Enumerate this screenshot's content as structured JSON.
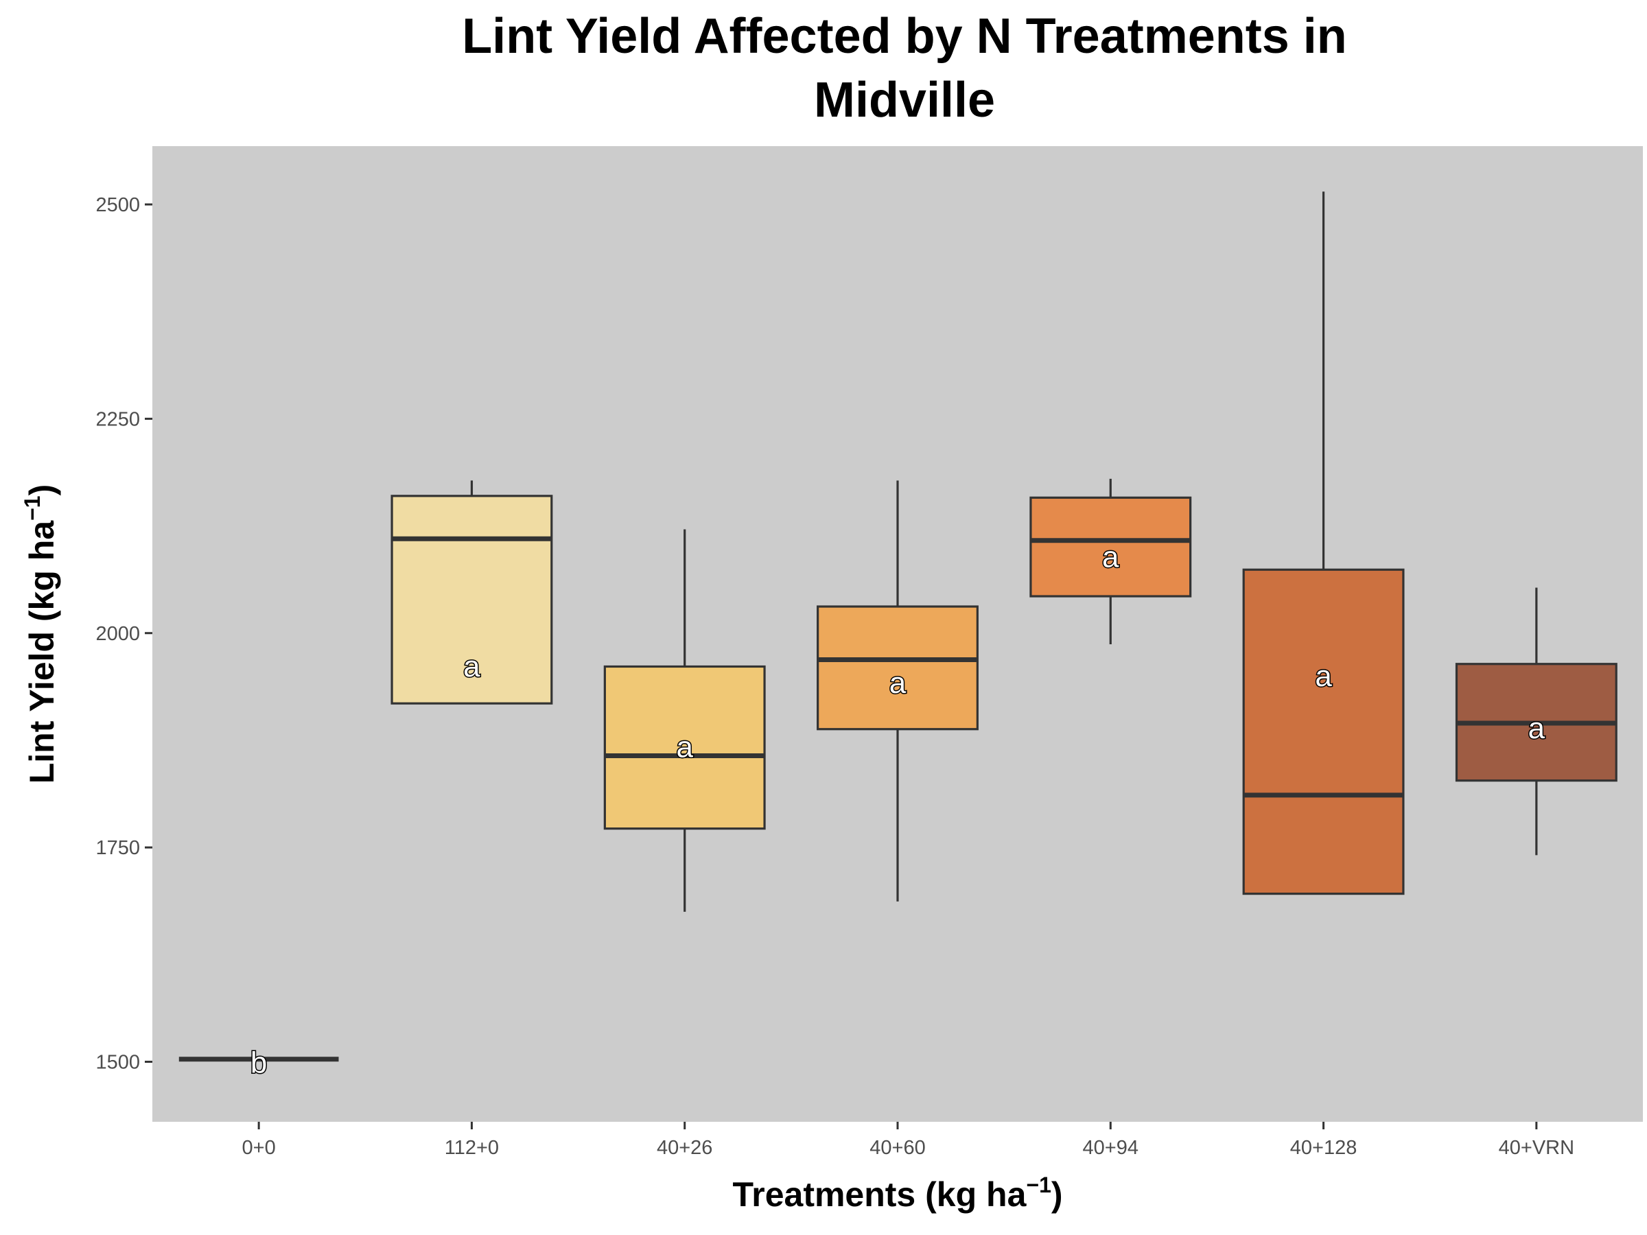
{
  "chart_data": {
    "type": "box",
    "title_lines": [
      "Lint Yield Affected by N Treatments in",
      "Midville"
    ],
    "xlabel": {
      "main": "Treatments (kg ha",
      "sup": "−1",
      "end": ")"
    },
    "ylabel": {
      "main": "Lint Yield (kg ha",
      "sup": "−1",
      "end": ")"
    },
    "ylim": [
      1430,
      2568
    ],
    "yticks": [
      1500,
      1750,
      2000,
      2250,
      2500
    ],
    "grid": false,
    "legend": "none",
    "panel_color": "#cccccc",
    "categories": [
      "0+0",
      "112+0",
      "40+26",
      "40+60",
      "40+94",
      "40+128",
      "40+VRN"
    ],
    "boxes": [
      {
        "category": "0+0",
        "whisker_low": 1503,
        "q1": 1503,
        "median": 1503,
        "q3": 1503,
        "whisker_high": 1503,
        "color": "#f6eab8",
        "letter": "b",
        "letter_y": 1500
      },
      {
        "category": "112+0",
        "whisker_low": 1918,
        "q1": 1918,
        "median": 2110,
        "q3": 2160,
        "whisker_high": 2178,
        "color": "#f0dca3",
        "letter": "a",
        "letter_y": 1962
      },
      {
        "category": "40+26",
        "whisker_low": 1675,
        "q1": 1772,
        "median": 1857,
        "q3": 1961,
        "whisker_high": 2121,
        "color": "#f0c875",
        "letter": "a",
        "letter_y": 1868
      },
      {
        "category": "40+60",
        "whisker_low": 1687,
        "q1": 1888,
        "median": 1969,
        "q3": 2031,
        "whisker_high": 2178,
        "color": "#eda85a",
        "letter": "a",
        "letter_y": 1943
      },
      {
        "category": "40+94",
        "whisker_low": 1987,
        "q1": 2043,
        "median": 2108,
        "q3": 2158,
        "whisker_high": 2180,
        "color": "#e58a4b",
        "letter": "a",
        "letter_y": 2090
      },
      {
        "category": "40+128",
        "whisker_low": 1696,
        "q1": 1696,
        "median": 1811,
        "q3": 2074,
        "whisker_high": 2515,
        "color": "#cc7140",
        "letter": "a",
        "letter_y": 1951
      },
      {
        "category": "40+VRN",
        "whisker_low": 1741,
        "q1": 1828,
        "median": 1895,
        "q3": 1964,
        "whisker_high": 2053,
        "color": "#9e5c43",
        "letter": "a",
        "letter_y": 1890
      }
    ]
  }
}
